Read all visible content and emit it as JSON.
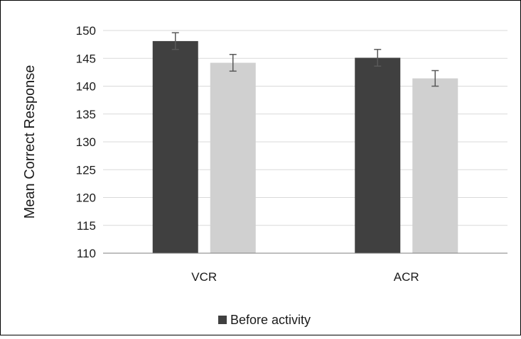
{
  "chart_data": {
    "type": "bar",
    "categories": [
      "VCR",
      "ACR"
    ],
    "series": [
      {
        "name": "Before activity",
        "values": [
          148.1,
          145.1
        ],
        "errors": [
          1.5,
          1.5
        ],
        "color": "#404040"
      },
      {
        "values": [
          144.2,
          141.4
        ],
        "errors": [
          1.5,
          1.4
        ],
        "color": "#d0d0d0"
      }
    ],
    "ylabel": "Mean Correct Response",
    "xlabel": "",
    "ylim": [
      110,
      150
    ],
    "yticks": [
      110,
      115,
      120,
      125,
      130,
      135,
      140,
      145,
      150
    ],
    "grid": true,
    "legend_position": "bottom-center"
  }
}
